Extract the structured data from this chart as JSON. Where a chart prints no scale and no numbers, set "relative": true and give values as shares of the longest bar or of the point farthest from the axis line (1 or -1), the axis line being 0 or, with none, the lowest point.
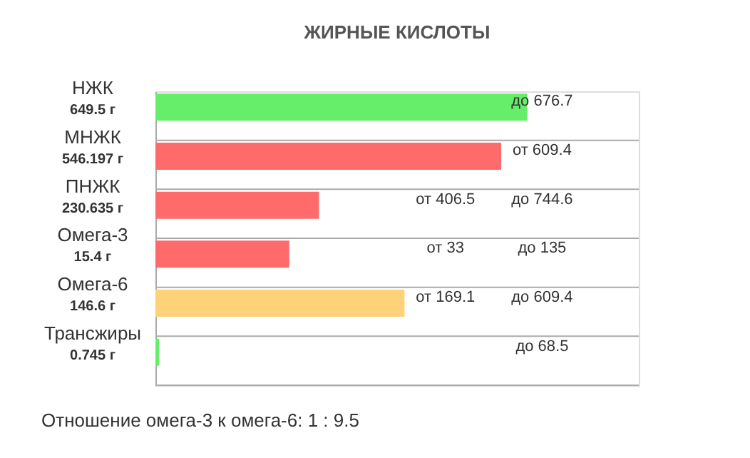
{
  "chart_data": {
    "type": "bar",
    "orientation": "horizontal",
    "relative": true,
    "title": "ЖИРНЫЕ КИСЛОТЫ",
    "categories": [
      "НЖК",
      "МНЖК",
      "ПНЖК",
      "Омега-3",
      "Омега-6",
      "Трансжиры"
    ],
    "values": [
      1,
      0.93,
      0.44,
      0.36,
      0.67,
      0.01
    ],
    "colors": [
      "#66ee6a",
      "#ff6b6b",
      "#ff6b6b",
      "#ff6b6b",
      "#ffd27a",
      "#66ee6a"
    ],
    "annotations": [
      "649.5 г",
      "до 676.7",
      "546.197 г",
      "от 609.4",
      "230.635 г",
      "от 406.5",
      "до 744.6",
      "15.4 г",
      "от 33",
      "до 135",
      "146.6 г",
      "от 169.1",
      "до 609.4",
      "0.745 г",
      "до 68.5",
      "Отношение омега-3 к омега-6: 1 : 9.5"
    ]
  }
}
